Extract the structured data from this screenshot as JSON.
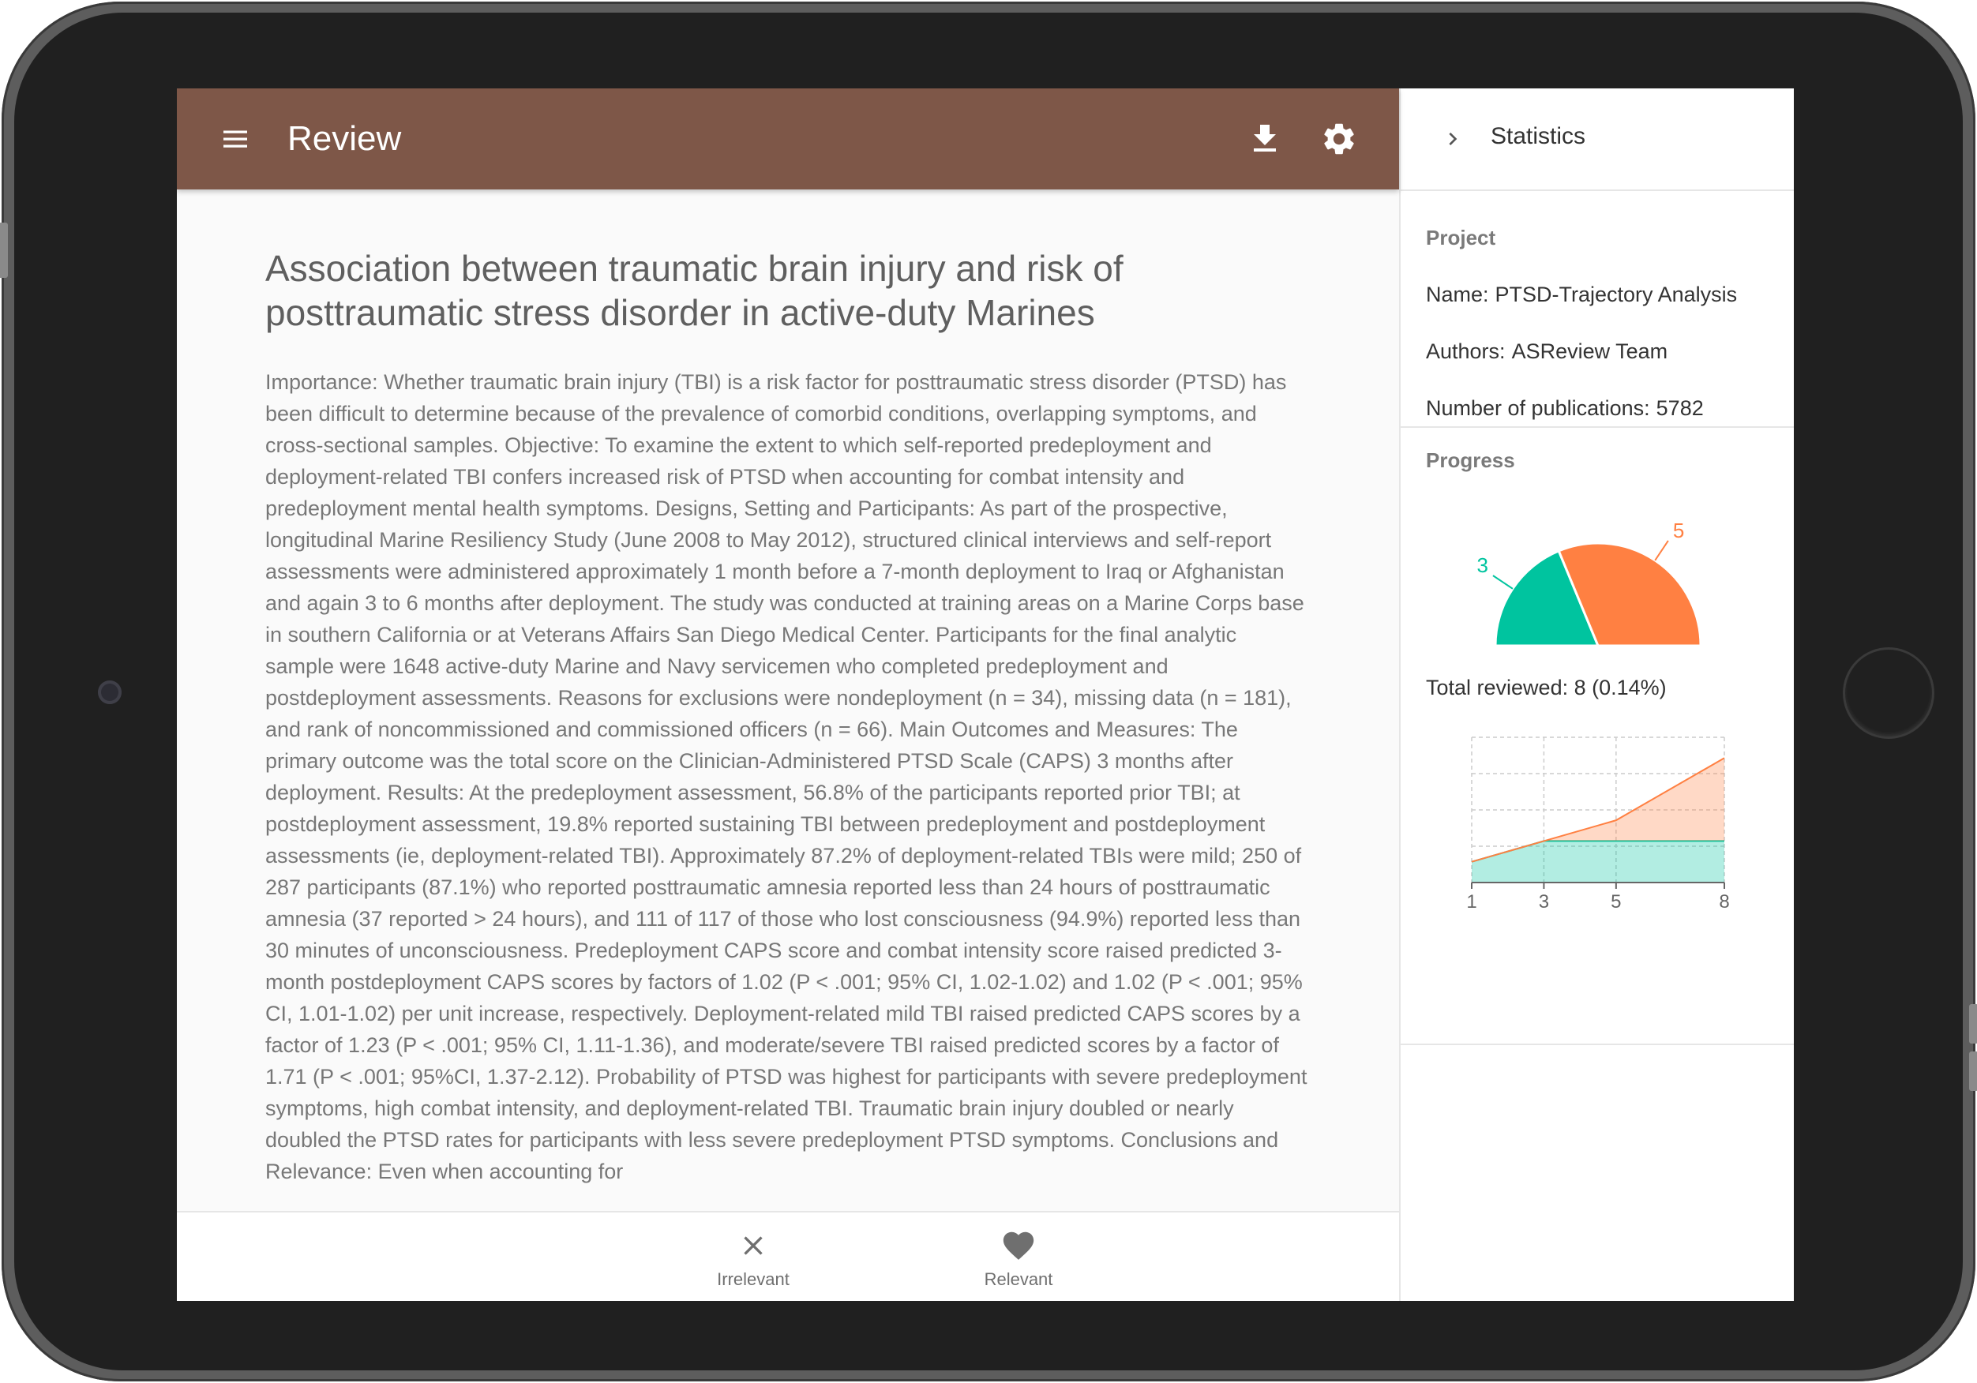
{
  "appbar": {
    "title": "Review"
  },
  "icons": {
    "menu": "menu-icon",
    "download": "download-icon",
    "settings": "gear-icon",
    "collapse": "chevron-right-icon",
    "irrelevant": "close-icon",
    "relevant": "heart-icon"
  },
  "colors": {
    "appbar": "#7e5748",
    "relevant": "#00c49f",
    "irrelevant": "#ff8042"
  },
  "paper": {
    "title": "Association between traumatic brain injury and risk of posttraumatic stress disorder in active-duty Marines",
    "abstract": "Importance: Whether traumatic brain injury (TBI) is a risk factor for posttraumatic stress disorder (PTSD) has been difficult to determine because of the prevalence of comorbid conditions, overlapping symptoms, and cross-sectional samples. Objective: To examine the extent to which self-reported predeployment and deployment-related TBI confers increased risk of PTSD when accounting for combat intensity and predeployment mental health symptoms. Designs, Setting and Participants: As part of the prospective, longitudinal Marine Resiliency Study (June 2008 to May 2012), structured clinical interviews and self-report assessments were administered approximately 1 month before a 7-month deployment to Iraq or Afghanistan and again 3 to 6 months after deployment. The study was conducted at training areas on a Marine Corps base in southern California or at Veterans Affairs San Diego Medical Center. Participants for the final analytic sample were 1648 active-duty Marine and Navy servicemen who completed predeployment and postdeployment assessments. Reasons for exclusions were nondeployment (n = 34), missing data (n = 181), and rank of noncommissioned and commissioned officers (n = 66). Main Outcomes and Measures: The primary outcome was the total score on the Clinician-Administered PTSD Scale (CAPS) 3 months after deployment. Results: At the predeployment assessment, 56.8% of the participants reported prior TBI; at postdeployment assessment, 19.8% reported sustaining TBI between predeployment and postdeployment assessments (ie, deployment-related TBI). Approximately 87.2% of deployment-related TBIs were mild; 250 of 287 participants (87.1%) who reported posttraumatic amnesia reported less than 24 hours of posttraumatic amnesia (37 reported > 24 hours), and 111 of 117 of those who lost consciousness (94.9%) reported less than 30 minutes of unconsciousness. Predeployment CAPS score and combat intensity score raised predicted 3-month postdeployment CAPS scores by factors of 1.02 (P < .001; 95% CI, 1.02-1.02) and 1.02 (P < .001; 95% CI, 1.01-1.02) per unit increase, respectively. Deployment-related mild TBI raised predicted CAPS scores by a factor of 1.23 (P < .001; 95% CI, 1.11-1.36), and moderate/severe TBI raised predicted scores by a factor of 1.71 (P < .001; 95%CI, 1.37-2.12). Probability of PTSD was highest for participants with severe predeployment symptoms, high combat intensity, and deployment-related TBI. Traumatic brain injury doubled or nearly doubled the PTSD rates for participants with less severe predeployment PTSD symptoms. Conclusions and Relevance: Even when accounting for"
  },
  "actions": {
    "irrelevant_label": "Irrelevant",
    "relevant_label": "Relevant"
  },
  "statistics": {
    "title": "Statistics",
    "project": {
      "heading": "Project",
      "name_key": "Name:",
      "name_value": "PTSD-Trajectory Analysis",
      "authors_key": "Authors:",
      "authors_value": "ASReview Team",
      "pubs_key": "Number of publications:",
      "pubs_value": "5782"
    },
    "progress": {
      "heading": "Progress",
      "total_reviewed_text": "Total reviewed: 8 (0.14%)"
    }
  },
  "chart_data": [
    {
      "type": "pie",
      "style": "half-donut",
      "slices": [
        {
          "value": 3,
          "label": "3",
          "color": "#00c49f"
        },
        {
          "value": 5,
          "label": "5",
          "color": "#ff8042"
        }
      ]
    },
    {
      "type": "area",
      "stacked": true,
      "x": [
        1,
        3,
        5,
        8
      ],
      "ticks": [
        "1",
        "3",
        "5",
        "8"
      ],
      "grid": true,
      "series": [
        {
          "values": [
            1,
            2,
            2,
            2
          ],
          "color": "#00c49f"
        },
        {
          "values": [
            0,
            0,
            1,
            4
          ],
          "color": "#ff8042"
        }
      ],
      "ylim": [
        0,
        7
      ]
    }
  ]
}
